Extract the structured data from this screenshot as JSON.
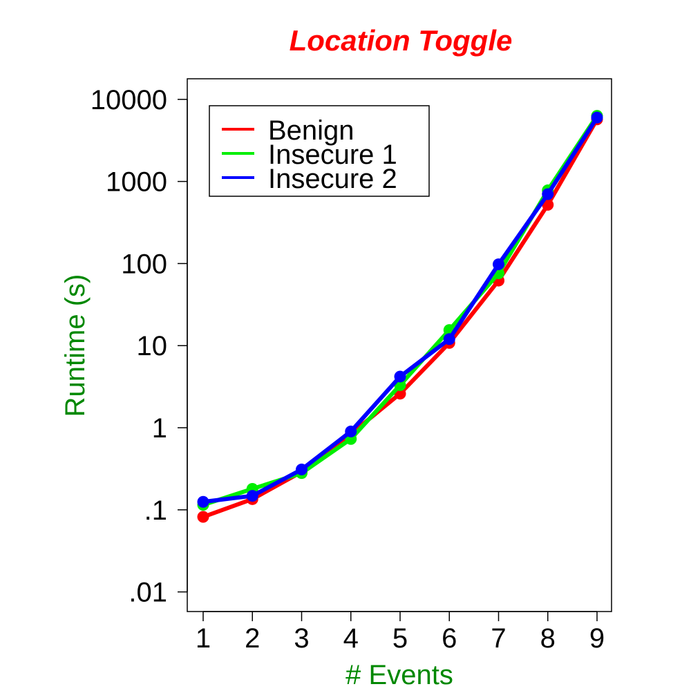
{
  "chart_data": {
    "type": "line",
    "title": "Location Toggle",
    "xlabel": "# Events",
    "ylabel": "Runtime (s)",
    "x": [
      1,
      2,
      3,
      4,
      5,
      6,
      7,
      8,
      9
    ],
    "x_tick_labels": [
      "1",
      "2",
      "3",
      "4",
      "5",
      "6",
      "7",
      "8",
      "9"
    ],
    "yscale": "log",
    "ylim": [
      0.005,
      18000
    ],
    "y_ticks": [
      0.01,
      0.1,
      1,
      10,
      100,
      1000,
      10000
    ],
    "y_tick_labels": [
      ".01",
      ".1",
      "1",
      "10",
      "100",
      "1000",
      "10000"
    ],
    "grid": false,
    "legend_position": "top-left",
    "series": [
      {
        "name": "Benign",
        "color": "#ff0000",
        "values": [
          0.082,
          0.135,
          0.29,
          0.84,
          2.6,
          10.8,
          62,
          520,
          5700
        ]
      },
      {
        "name": "Insecure 1",
        "color": "#00ee00",
        "values": [
          0.115,
          0.18,
          0.28,
          0.73,
          3.3,
          15.5,
          76,
          780,
          6300
        ]
      },
      {
        "name": "Insecure 2",
        "color": "#0000ff",
        "values": [
          0.125,
          0.148,
          0.31,
          0.9,
          4.2,
          12,
          98,
          700,
          6000
        ]
      }
    ],
    "colors": {
      "title": "#ff0000",
      "xlabel": "#008800",
      "ylabel": "#008800"
    }
  }
}
